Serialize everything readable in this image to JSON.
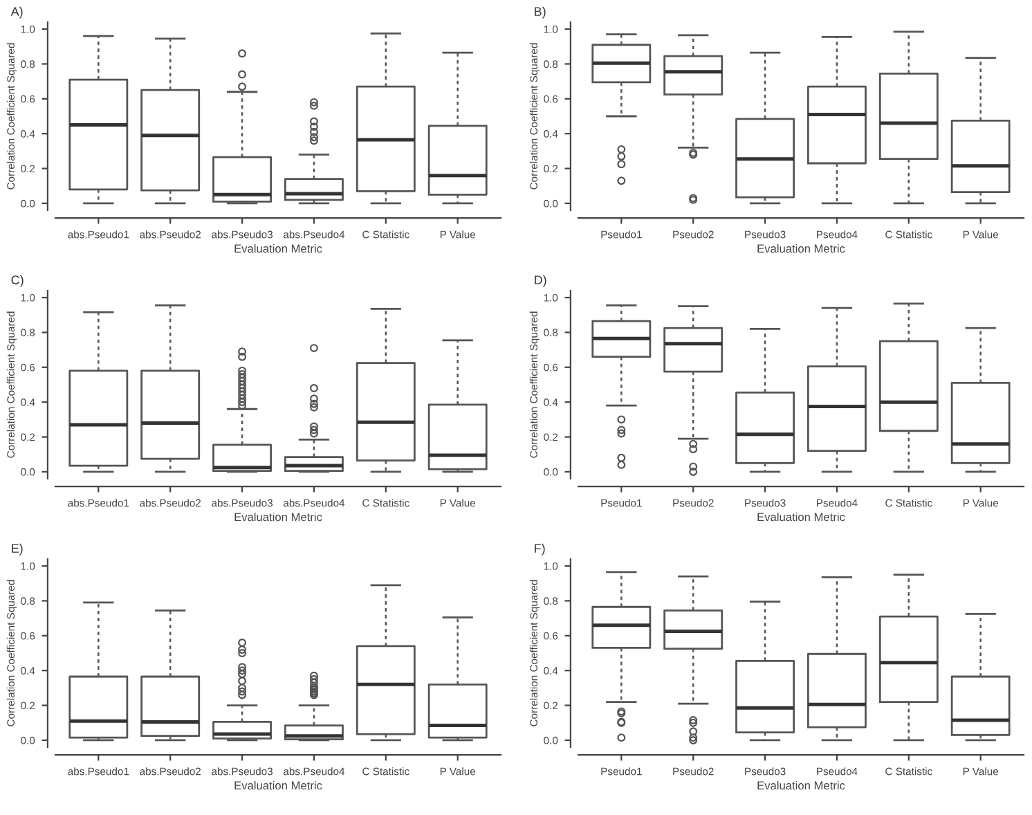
{
  "chart_data": [
    {
      "type": "box",
      "title": "A)",
      "xlabel": "Evaluation Metric",
      "ylabel": "Correlation Coefficient Squared",
      "categories": [
        "abs.Pseudo1",
        "abs.Pseudo2",
        "abs.Pseudo3",
        "abs.Pseudo4",
        "C Statistic",
        "P Value"
      ],
      "ylim": [
        -0.04,
        1.04
      ],
      "yticks": [
        {
          "value": 0,
          "label": "0.0"
        },
        {
          "value": 0.2,
          "label": "0.2"
        },
        {
          "value": 0.4,
          "label": "0.4"
        },
        {
          "value": 0.6,
          "label": "0.6"
        },
        {
          "value": 0.8,
          "label": "0.8"
        },
        {
          "value": 1,
          "label": "1.0"
        }
      ],
      "grid": false,
      "color": "#555555",
      "boxes": [
        {
          "low": 0,
          "q1": 0.08,
          "median": 0.45,
          "q3": 0.71,
          "high": 0.96
        },
        {
          "low": 0,
          "q1": 0.075,
          "median": 0.39,
          "q3": 0.65,
          "high": 0.945
        },
        {
          "low": 0,
          "q1": 0.01,
          "median": 0.05,
          "q3": 0.265,
          "high": 0.64,
          "outliers": [
            0.67,
            0.74,
            0.86
          ]
        },
        {
          "low": 0,
          "q1": 0.02,
          "median": 0.055,
          "q3": 0.14,
          "high": 0.28,
          "outliers": [
            0.36,
            0.38,
            0.41,
            0.44,
            0.47,
            0.56,
            0.58
          ]
        },
        {
          "low": 0,
          "q1": 0.07,
          "median": 0.365,
          "q3": 0.67,
          "high": 0.975
        },
        {
          "low": 0,
          "q1": 0.05,
          "median": 0.16,
          "q3": 0.445,
          "high": 0.865
        }
      ]
    },
    {
      "type": "box",
      "title": "B)",
      "xlabel": "Evaluation Metric",
      "ylabel": "Correlation Coefficient Squared",
      "categories": [
        "Pseudo1",
        "Pseudo2",
        "Pseudo3",
        "Pseudo4",
        "C Statistic",
        "P Value"
      ],
      "ylim": [
        -0.04,
        1.04
      ],
      "yticks": [
        {
          "value": 0,
          "label": "0.0"
        },
        {
          "value": 0.2,
          "label": "0.2"
        },
        {
          "value": 0.4,
          "label": "0.4"
        },
        {
          "value": 0.6,
          "label": "0.6"
        },
        {
          "value": 0.8,
          "label": "0.8"
        },
        {
          "value": 1,
          "label": "1.0"
        }
      ],
      "grid": false,
      "color": "#555555",
      "boxes": [
        {
          "low": 0.5,
          "q1": 0.695,
          "median": 0.805,
          "q3": 0.91,
          "high": 0.97,
          "outliers": [
            0.13,
            0.225,
            0.27,
            0.31
          ]
        },
        {
          "low": 0.32,
          "q1": 0.625,
          "median": 0.755,
          "q3": 0.845,
          "high": 0.965,
          "outliers": [
            0.02,
            0.03,
            0.28,
            0.29
          ]
        },
        {
          "low": 0,
          "q1": 0.035,
          "median": 0.255,
          "q3": 0.485,
          "high": 0.865
        },
        {
          "low": 0,
          "q1": 0.23,
          "median": 0.51,
          "q3": 0.67,
          "high": 0.955
        },
        {
          "low": 0,
          "q1": 0.255,
          "median": 0.46,
          "q3": 0.745,
          "high": 0.985
        },
        {
          "low": 0,
          "q1": 0.065,
          "median": 0.215,
          "q3": 0.475,
          "high": 0.835
        }
      ]
    },
    {
      "type": "box",
      "title": "C)",
      "xlabel": "Evaluation Metric",
      "ylabel": "Correlation Coefficient Squared",
      "categories": [
        "abs.Pseudo1",
        "abs.Pseudo2",
        "abs.Pseudo3",
        "abs.Pseudo4",
        "C Statistic",
        "P Value"
      ],
      "ylim": [
        -0.04,
        1.04
      ],
      "yticks": [
        {
          "value": 0,
          "label": "0.0"
        },
        {
          "value": 0.2,
          "label": "0.2"
        },
        {
          "value": 0.4,
          "label": "0.4"
        },
        {
          "value": 0.6,
          "label": "0.6"
        },
        {
          "value": 0.8,
          "label": "0.8"
        },
        {
          "value": 1,
          "label": "1.0"
        }
      ],
      "grid": false,
      "color": "#555555",
      "boxes": [
        {
          "low": 0,
          "q1": 0.035,
          "median": 0.27,
          "q3": 0.58,
          "high": 0.915
        },
        {
          "low": 0,
          "q1": 0.075,
          "median": 0.28,
          "q3": 0.58,
          "high": 0.955
        },
        {
          "low": 0,
          "q1": 0.005,
          "median": 0.025,
          "q3": 0.155,
          "high": 0.36,
          "outliers": [
            0.38,
            0.4,
            0.42,
            0.44,
            0.46,
            0.48,
            0.5,
            0.52,
            0.54,
            0.56,
            0.58,
            0.66,
            0.69
          ]
        },
        {
          "low": 0,
          "q1": 0.005,
          "median": 0.035,
          "q3": 0.085,
          "high": 0.185,
          "outliers": [
            0.22,
            0.24,
            0.26,
            0.37,
            0.39,
            0.42,
            0.48,
            0.71
          ]
        },
        {
          "low": 0,
          "q1": 0.065,
          "median": 0.285,
          "q3": 0.625,
          "high": 0.935
        },
        {
          "low": 0,
          "q1": 0.015,
          "median": 0.095,
          "q3": 0.385,
          "high": 0.755
        }
      ]
    },
    {
      "type": "box",
      "title": "D)",
      "xlabel": "Evaluation Metric",
      "ylabel": "Correlation Coefficient Squared",
      "categories": [
        "Pseudo1",
        "Pseudo2",
        "Pseudo3",
        "Pseudo4",
        "C Statistic",
        "P Value"
      ],
      "ylim": [
        -0.04,
        1.04
      ],
      "yticks": [
        {
          "value": 0,
          "label": "0.0"
        },
        {
          "value": 0.2,
          "label": "0.2"
        },
        {
          "value": 0.4,
          "label": "0.4"
        },
        {
          "value": 0.6,
          "label": "0.6"
        },
        {
          "value": 0.8,
          "label": "0.8"
        },
        {
          "value": 1,
          "label": "1.0"
        }
      ],
      "grid": false,
      "color": "#555555",
      "boxes": [
        {
          "low": 0.38,
          "q1": 0.66,
          "median": 0.765,
          "q3": 0.865,
          "high": 0.955,
          "outliers": [
            0.04,
            0.08,
            0.22,
            0.24,
            0.3
          ]
        },
        {
          "low": 0.19,
          "q1": 0.575,
          "median": 0.735,
          "q3": 0.825,
          "high": 0.95,
          "outliers": [
            0.0,
            0.03,
            0.13,
            0.16
          ]
        },
        {
          "low": 0,
          "q1": 0.05,
          "median": 0.215,
          "q3": 0.455,
          "high": 0.82
        },
        {
          "low": 0,
          "q1": 0.12,
          "median": 0.375,
          "q3": 0.605,
          "high": 0.94
        },
        {
          "low": 0,
          "q1": 0.235,
          "median": 0.4,
          "q3": 0.75,
          "high": 0.965
        },
        {
          "low": 0,
          "q1": 0.05,
          "median": 0.16,
          "q3": 0.51,
          "high": 0.825
        }
      ]
    },
    {
      "type": "box",
      "title": "E)",
      "xlabel": "Evaluation Metric",
      "ylabel": "Correlation Coefficient Squared",
      "categories": [
        "abs.Pseudo1",
        "abs.Pseudo2",
        "abs.Pseudo3",
        "abs.Pseudo4",
        "C Statistic",
        "P Value"
      ],
      "ylim": [
        -0.04,
        1.04
      ],
      "yticks": [
        {
          "value": 0,
          "label": "0.0"
        },
        {
          "value": 0.2,
          "label": "0.2"
        },
        {
          "value": 0.4,
          "label": "0.4"
        },
        {
          "value": 0.6,
          "label": "0.6"
        },
        {
          "value": 0.8,
          "label": "0.8"
        },
        {
          "value": 1,
          "label": "1.0"
        }
      ],
      "grid": false,
      "color": "#555555",
      "boxes": [
        {
          "low": 0,
          "q1": 0.015,
          "median": 0.11,
          "q3": 0.365,
          "high": 0.79
        },
        {
          "low": 0,
          "q1": 0.025,
          "median": 0.105,
          "q3": 0.365,
          "high": 0.745
        },
        {
          "low": 0,
          "q1": 0.01,
          "median": 0.035,
          "q3": 0.105,
          "high": 0.2,
          "outliers": [
            0.26,
            0.28,
            0.3,
            0.34,
            0.38,
            0.4,
            0.42,
            0.5,
            0.52,
            0.56
          ]
        },
        {
          "low": 0,
          "q1": 0.005,
          "median": 0.025,
          "q3": 0.085,
          "high": 0.2,
          "outliers": [
            0.26,
            0.27,
            0.28,
            0.29,
            0.3,
            0.31,
            0.33,
            0.35,
            0.37
          ]
        },
        {
          "low": 0,
          "q1": 0.035,
          "median": 0.32,
          "q3": 0.54,
          "high": 0.89
        },
        {
          "low": 0,
          "q1": 0.015,
          "median": 0.085,
          "q3": 0.32,
          "high": 0.705
        }
      ]
    },
    {
      "type": "box",
      "title": "F)",
      "xlabel": "Evaluation Metric",
      "ylabel": "Correlation Coefficient Squared",
      "categories": [
        "Pseudo1",
        "Pseudo2",
        "Pseudo3",
        "Pseudo4",
        "C Statistic",
        "P Value"
      ],
      "ylim": [
        -0.04,
        1.04
      ],
      "yticks": [
        {
          "value": 0,
          "label": "0.0"
        },
        {
          "value": 0.2,
          "label": "0.2"
        },
        {
          "value": 0.4,
          "label": "0.4"
        },
        {
          "value": 0.6,
          "label": "0.6"
        },
        {
          "value": 0.8,
          "label": "0.8"
        },
        {
          "value": 1,
          "label": "1.0"
        }
      ],
      "grid": false,
      "color": "#555555",
      "boxes": [
        {
          "low": 0.22,
          "q1": 0.53,
          "median": 0.66,
          "q3": 0.765,
          "high": 0.965,
          "outliers": [
            0.015,
            0.1,
            0.105,
            0.155,
            0.165
          ]
        },
        {
          "low": 0.21,
          "q1": 0.525,
          "median": 0.625,
          "q3": 0.745,
          "high": 0.94,
          "outliers": [
            0.0,
            0.015,
            0.05,
            0.1,
            0.115
          ]
        },
        {
          "low": 0,
          "q1": 0.045,
          "median": 0.185,
          "q3": 0.455,
          "high": 0.795
        },
        {
          "low": 0,
          "q1": 0.075,
          "median": 0.205,
          "q3": 0.495,
          "high": 0.935
        },
        {
          "low": 0,
          "q1": 0.22,
          "median": 0.445,
          "q3": 0.71,
          "high": 0.95
        },
        {
          "low": 0,
          "q1": 0.03,
          "median": 0.115,
          "q3": 0.365,
          "high": 0.725
        }
      ]
    }
  ]
}
